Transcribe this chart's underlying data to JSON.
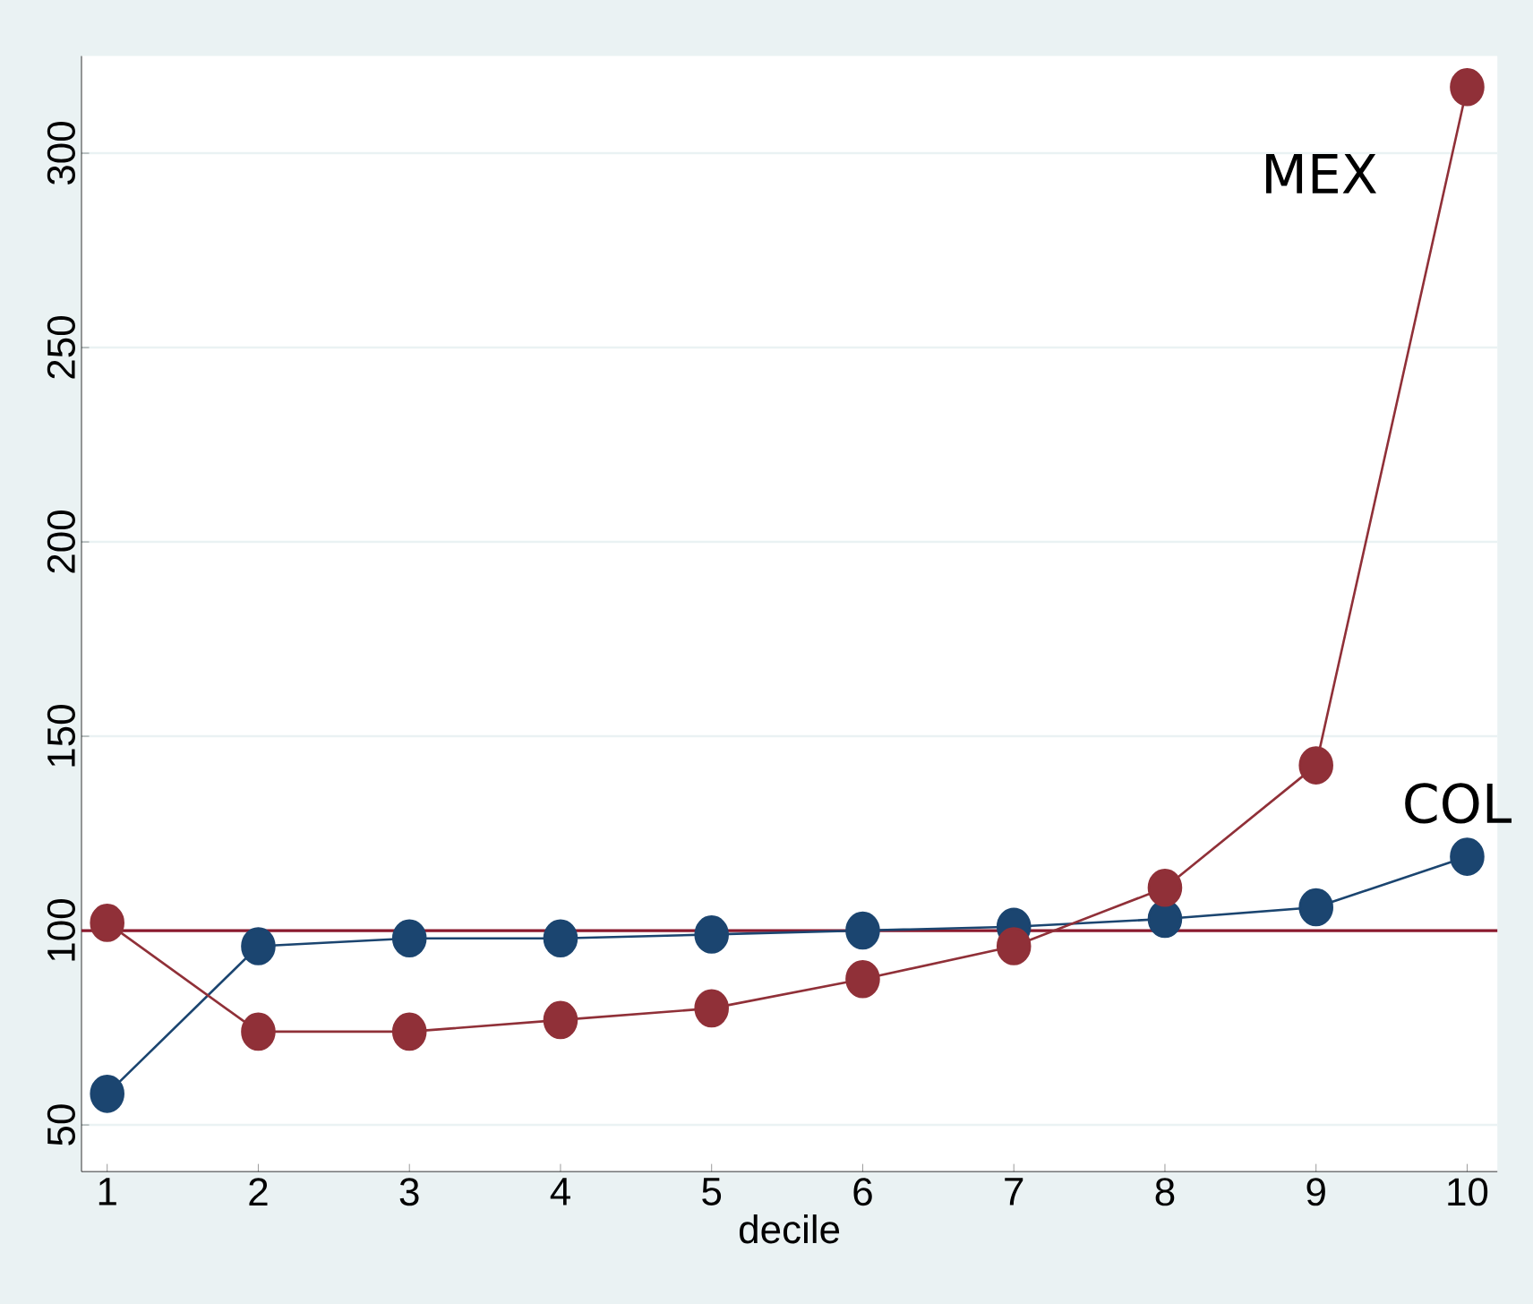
{
  "chart_data": {
    "type": "line",
    "xlabel": "decile",
    "x": [
      1,
      2,
      3,
      4,
      5,
      6,
      7,
      8,
      9,
      10
    ],
    "series": [
      {
        "name": "COL",
        "color": "#1b4570",
        "values": [
          58,
          96,
          98,
          98,
          99,
          100,
          101,
          103,
          106,
          119
        ]
      },
      {
        "name": "MEX",
        "color": "#903038",
        "values": [
          102,
          74,
          74,
          77,
          80,
          87.5,
          96,
          111,
          142.5,
          317
        ]
      }
    ],
    "xlim": [
      0.83,
      10.2
    ],
    "ylim": [
      38,
      325
    ],
    "xticks": [
      1,
      2,
      3,
      4,
      5,
      6,
      7,
      8,
      9,
      10
    ],
    "yticks": [
      50,
      100,
      150,
      200,
      250,
      300
    ],
    "ref_lines": [
      {
        "axis": "y",
        "value": 100,
        "color": "#8b1a2e"
      }
    ],
    "grid": "y",
    "marker": "circle",
    "line_style": "solid",
    "legend": false
  }
}
